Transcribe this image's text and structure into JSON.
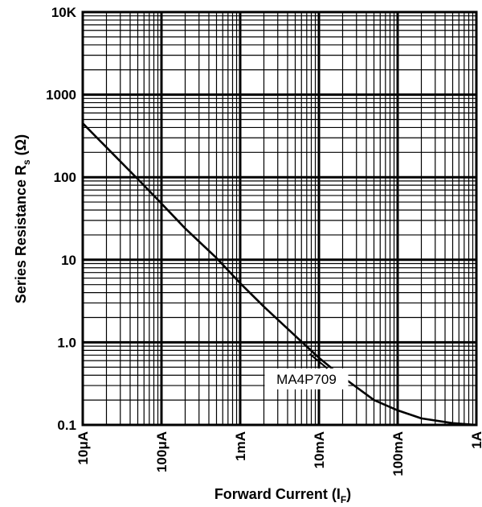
{
  "chart_data": {
    "type": "line",
    "xlabel": "Forward Current (I",
    "xlabel_sub": "F",
    "xlabel_tail": ")",
    "ylabel": "Series Resistance R",
    "ylabel_sub": "s",
    "ylabel_tail": " (Ω)",
    "x_scale": "log",
    "y_scale": "log",
    "xlim": [
      1e-05,
      1
    ],
    "ylim": [
      0.1,
      10000
    ],
    "grid": true,
    "x_ticks": [
      {
        "value": 1e-05,
        "label": "10μA"
      },
      {
        "value": 0.0001,
        "label": "100μA"
      },
      {
        "value": 0.001,
        "label": "1mA"
      },
      {
        "value": 0.01,
        "label": "10mA"
      },
      {
        "value": 0.1,
        "label": "100mA"
      },
      {
        "value": 1,
        "label": "1A"
      }
    ],
    "y_ticks": [
      {
        "value": 0.1,
        "label": "0.1"
      },
      {
        "value": 1,
        "label": "1.0"
      },
      {
        "value": 10,
        "label": "10"
      },
      {
        "value": 100,
        "label": "100"
      },
      {
        "value": 1000,
        "label": "1000"
      },
      {
        "value": 10000,
        "label": "10K"
      }
    ],
    "series": [
      {
        "name": "MA4P709",
        "x": [
          1e-05,
          2e-05,
          5e-05,
          0.0001,
          0.0002,
          0.0005,
          0.001,
          0.002,
          0.005,
          0.01,
          0.02,
          0.05,
          0.1,
          0.2,
          0.5,
          1
        ],
        "y": [
          450,
          230,
          95,
          48,
          24,
          10.5,
          5.2,
          2.7,
          1.2,
          0.65,
          0.38,
          0.2,
          0.15,
          0.12,
          0.105,
          0.1
        ]
      }
    ],
    "annotations": [
      {
        "text": "MA4P709",
        "series": "MA4P709",
        "at_x": 0.008
      }
    ]
  }
}
